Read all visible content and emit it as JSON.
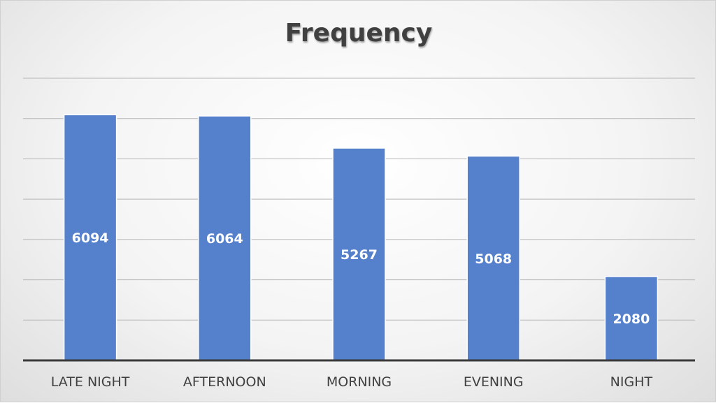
{
  "chart_data": {
    "type": "bar",
    "title": "Frequency",
    "categories": [
      "LATE NIGHT",
      "AFTERNOON",
      "MORNING",
      "EVENING",
      "NIGHT"
    ],
    "values": [
      6094,
      6064,
      5267,
      5068,
      2080
    ],
    "ylim": [
      0,
      7000
    ],
    "grid": true,
    "legend": "none",
    "colors": {
      "bar": "#5580cc",
      "data_label": "#ffffff",
      "tick_label": "#404040",
      "title": "#404040"
    }
  }
}
